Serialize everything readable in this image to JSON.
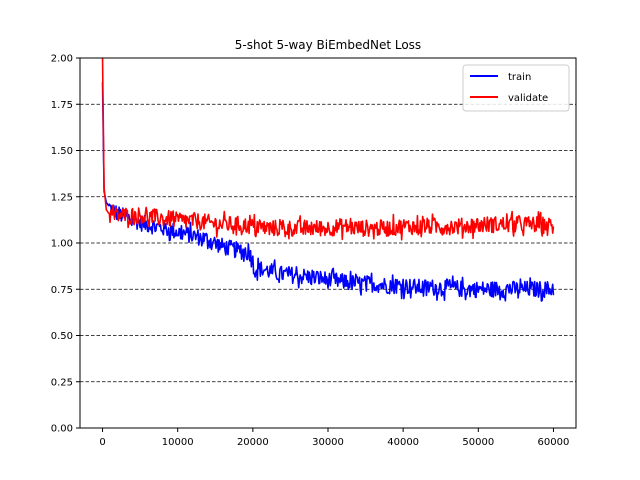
{
  "chart_data": {
    "type": "line",
    "title": "5-shot 5-way BiEmbedNet Loss",
    "xlabel": "",
    "ylabel": "",
    "xlim": [
      -3000,
      63000
    ],
    "ylim": [
      0.0,
      2.0
    ],
    "x_ticks": [
      0,
      10000,
      20000,
      30000,
      40000,
      50000,
      60000
    ],
    "x_tick_labels": [
      "0",
      "10000",
      "20000",
      "30000",
      "40000",
      "50000",
      "60000"
    ],
    "y_ticks": [
      0.0,
      0.25,
      0.5,
      0.75,
      1.0,
      1.25,
      1.5,
      1.75,
      2.0
    ],
    "y_tick_labels": [
      "0.00",
      "0.25",
      "0.50",
      "0.75",
      "1.00",
      "1.25",
      "1.50",
      "1.75",
      "2.00"
    ],
    "grid": "horizontal dashed",
    "legend_position": "top-right",
    "series": [
      {
        "name": "train",
        "color": "#0000ff",
        "x": [
          0,
          200,
          500,
          1000,
          2000,
          3000,
          4000,
          5000,
          6000,
          7000,
          8000,
          9000,
          10000,
          11000,
          12000,
          13000,
          14000,
          15000,
          16000,
          17000,
          18000,
          19000,
          19900,
          20100,
          21000,
          22000,
          23000,
          24000,
          25000,
          26000,
          27000,
          28000,
          29000,
          30000,
          32000,
          34000,
          36000,
          38000,
          40000,
          42000,
          44000,
          46000,
          48000,
          50000,
          52000,
          54000,
          56000,
          58000,
          60000
        ],
        "y": [
          1.87,
          1.28,
          1.22,
          1.19,
          1.16,
          1.14,
          1.13,
          1.11,
          1.1,
          1.09,
          1.08,
          1.07,
          1.06,
          1.05,
          1.04,
          1.03,
          1.02,
          1.0,
          0.98,
          0.97,
          0.96,
          0.95,
          0.94,
          0.86,
          0.86,
          0.85,
          0.84,
          0.83,
          0.83,
          0.82,
          0.82,
          0.81,
          0.81,
          0.8,
          0.79,
          0.78,
          0.78,
          0.77,
          0.77,
          0.76,
          0.76,
          0.76,
          0.75,
          0.75,
          0.75,
          0.75,
          0.75,
          0.75,
          0.75
        ]
      },
      {
        "name": "validate",
        "color": "#ff0000",
        "x": [
          0,
          200,
          500,
          1000,
          2000,
          3000,
          4000,
          5000,
          6000,
          7000,
          8000,
          9000,
          10000,
          12000,
          14000,
          16000,
          18000,
          20000,
          22000,
          24000,
          26000,
          28000,
          30000,
          32000,
          34000,
          36000,
          38000,
          40000,
          42000,
          44000,
          46000,
          48000,
          50000,
          52000,
          54000,
          56000,
          58000,
          60000
        ],
        "y": [
          2.0,
          1.3,
          1.18,
          1.15,
          1.15,
          1.15,
          1.15,
          1.15,
          1.14,
          1.14,
          1.13,
          1.13,
          1.12,
          1.12,
          1.11,
          1.1,
          1.1,
          1.09,
          1.08,
          1.08,
          1.08,
          1.08,
          1.08,
          1.09,
          1.08,
          1.08,
          1.08,
          1.09,
          1.09,
          1.09,
          1.09,
          1.09,
          1.1,
          1.1,
          1.1,
          1.1,
          1.1,
          1.09
        ]
      }
    ]
  }
}
